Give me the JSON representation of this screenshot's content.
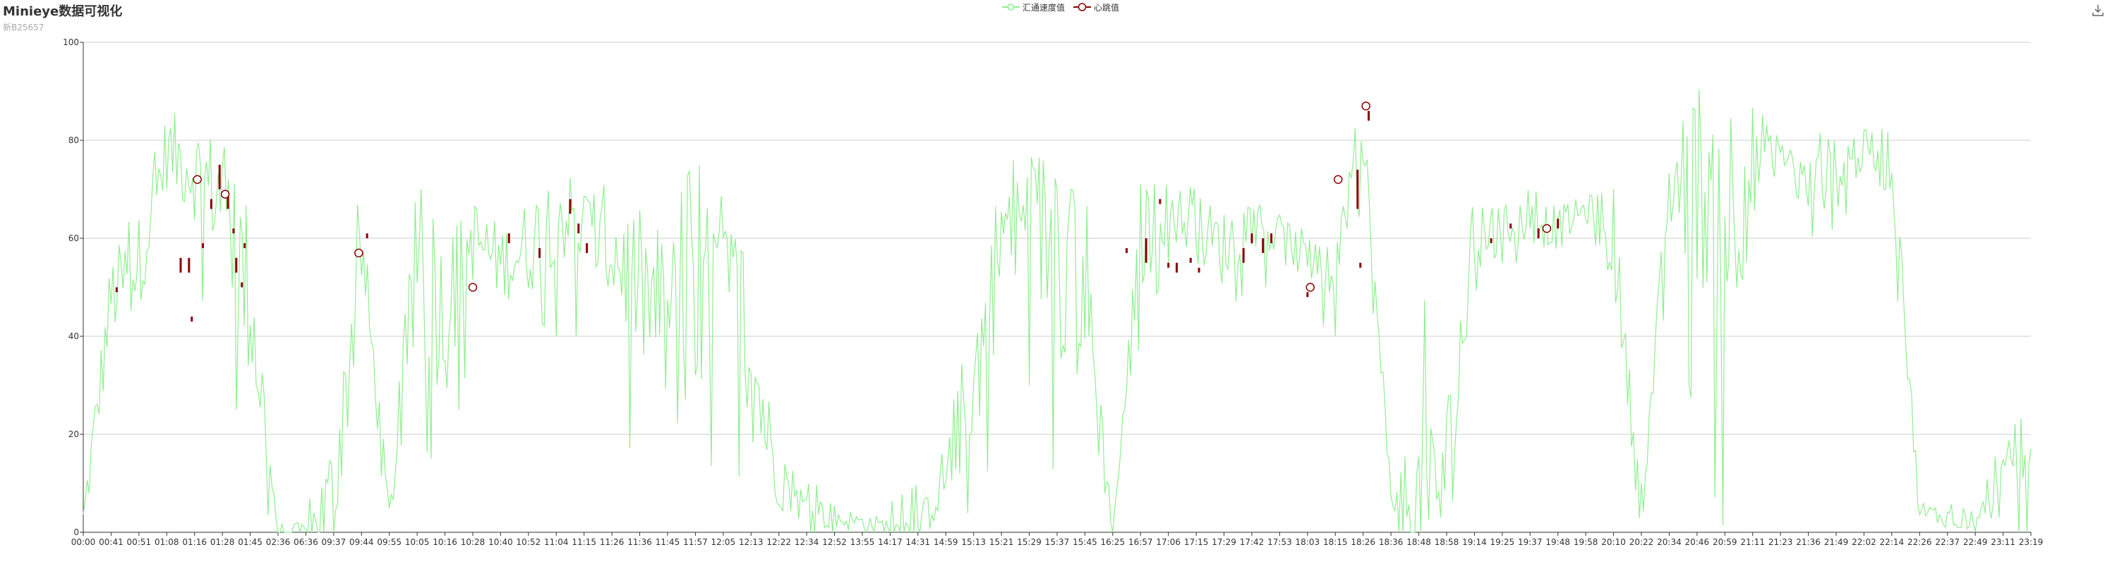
{
  "title": "Minieye数据可视化",
  "subtitle": "新B25657",
  "legend": {
    "series1": "汇通速度值",
    "series2": "心跳值"
  },
  "colors": {
    "speed": "#90ee90",
    "heartbeat": "#8b0000",
    "grid": "#cccccc",
    "axis": "#333333"
  },
  "icons": {
    "download": "download-icon"
  },
  "chart_data": {
    "type": "line",
    "title": "Minieye数据可视化",
    "subtitle": "新B25657",
    "ylim": [
      0,
      100
    ],
    "yticks": [
      0,
      20,
      40,
      60,
      80,
      100
    ],
    "grid": true,
    "legend_position": "top-center",
    "xticks": [
      "00:00",
      "00:41",
      "00:51",
      "01:08",
      "01:16",
      "01:28",
      "01:45",
      "02:36",
      "06:36",
      "09:37",
      "09:44",
      "09:55",
      "10:05",
      "10:16",
      "10:28",
      "10:40",
      "10:52",
      "11:04",
      "11:15",
      "11:26",
      "11:36",
      "11:45",
      "11:57",
      "12:05",
      "12:13",
      "12:22",
      "12:34",
      "12:52",
      "13:55",
      "14:17",
      "14:31",
      "14:59",
      "15:13",
      "15:21",
      "15:29",
      "15:37",
      "15:45",
      "16:25",
      "16:57",
      "17:06",
      "17:15",
      "17:29",
      "17:42",
      "17:53",
      "18:03",
      "18:15",
      "18:26",
      "18:36",
      "18:48",
      "18:58",
      "19:14",
      "19:25",
      "19:37",
      "19:48",
      "19:58",
      "20:10",
      "20:22",
      "20:34",
      "20:46",
      "20:59",
      "21:11",
      "21:23",
      "21:36",
      "21:49",
      "22:02",
      "22:14",
      "22:26",
      "22:37",
      "22:49",
      "23:11",
      "23:19"
    ],
    "series": [
      {
        "name": "汇通速度值",
        "kind": "line",
        "x": [
          0,
          1,
          2,
          3,
          4,
          5,
          6,
          7,
          8,
          9,
          10,
          11,
          12,
          13,
          14,
          15,
          16,
          17,
          18,
          19,
          20,
          21,
          22,
          23,
          24,
          25,
          26,
          27,
          28,
          29,
          30,
          31,
          32,
          33,
          34,
          35,
          36,
          37,
          38,
          39,
          40,
          41,
          42,
          43,
          44,
          45,
          46,
          47,
          48,
          49,
          50,
          51,
          52,
          53,
          54,
          55,
          56,
          57,
          58,
          59,
          60,
          61,
          62,
          63,
          64,
          65,
          66,
          67,
          68,
          69,
          70
        ],
        "y": [
          2,
          48,
          55,
          78,
          74,
          68,
          48,
          0,
          0,
          6,
          58,
          3,
          54,
          44,
          60,
          55,
          58,
          66,
          62,
          58,
          50,
          42,
          40,
          56,
          36,
          10,
          5,
          3,
          2,
          1,
          0,
          12,
          30,
          60,
          64,
          58,
          50,
          0,
          60,
          66,
          62,
          58,
          64,
          60,
          56,
          52,
          78,
          8,
          5,
          12,
          60,
          62,
          64,
          62,
          66,
          60,
          3,
          70,
          72,
          65,
          74,
          76,
          70,
          74,
          78,
          76,
          4,
          3,
          2,
          10,
          17
        ],
        "min": [
          0,
          30,
          40,
          62,
          50,
          40,
          10,
          0,
          0,
          0,
          40,
          0,
          20,
          10,
          40,
          40,
          45,
          40,
          40,
          30,
          10,
          5,
          5,
          20,
          5,
          0,
          0,
          0,
          0,
          0,
          0,
          0,
          5,
          20,
          30,
          10,
          0,
          0,
          40,
          55,
          50,
          45,
          50,
          50,
          45,
          40,
          60,
          0,
          0,
          0,
          30,
          55,
          55,
          55,
          60,
          40,
          0,
          55,
          20,
          0,
          40,
          65,
          60,
          62,
          70,
          60,
          0,
          0,
          0,
          0,
          0
        ],
        "max": [
          15,
          55,
          68,
          85,
          80,
          75,
          66,
          0,
          0,
          48,
          70,
          8,
          72,
          58,
          66,
          62,
          74,
          70,
          68,
          66,
          56,
          62,
          77,
          62,
          55,
          15,
          10,
          9,
          4,
          6,
          10,
          20,
          45,
          66,
          75,
          70,
          70,
          0,
          74,
          72,
          70,
          68,
          66,
          64,
          60,
          56,
          93,
          10,
          48,
          45,
          68,
          68,
          70,
          68,
          68,
          70,
          10,
          78,
          80,
          82,
          82,
          78,
          78,
          86,
          82,
          84,
          8,
          6,
          4,
          20,
          25
        ]
      },
      {
        "name": "心跳值",
        "kind": "scatter",
        "points": [
          {
            "x": 4.1,
            "y": 72
          },
          {
            "x": 5.1,
            "y": 69
          },
          {
            "x": 9.9,
            "y": 57
          },
          {
            "x": 14.0,
            "y": 50
          },
          {
            "x": 44.1,
            "y": 50
          },
          {
            "x": 45.1,
            "y": 72
          },
          {
            "x": 46.1,
            "y": 87
          },
          {
            "x": 52.6,
            "y": 62
          }
        ],
        "bars": [
          {
            "x": 1.2,
            "y1": 49,
            "y2": 50
          },
          {
            "x": 3.5,
            "y1": 53,
            "y2": 56
          },
          {
            "x": 3.8,
            "y1": 53,
            "y2": 56
          },
          {
            "x": 3.9,
            "y1": 43,
            "y2": 44
          },
          {
            "x": 4.3,
            "y1": 58,
            "y2": 59
          },
          {
            "x": 4.6,
            "y1": 66,
            "y2": 68
          },
          {
            "x": 4.9,
            "y1": 70,
            "y2": 75
          },
          {
            "x": 5.2,
            "y1": 66,
            "y2": 69
          },
          {
            "x": 5.4,
            "y1": 61,
            "y2": 62
          },
          {
            "x": 5.5,
            "y1": 53,
            "y2": 56
          },
          {
            "x": 5.7,
            "y1": 50,
            "y2": 51
          },
          {
            "x": 5.8,
            "y1": 58,
            "y2": 59
          },
          {
            "x": 10.2,
            "y1": 60,
            "y2": 61
          },
          {
            "x": 15.3,
            "y1": 59,
            "y2": 61
          },
          {
            "x": 16.4,
            "y1": 56,
            "y2": 58
          },
          {
            "x": 17.5,
            "y1": 65,
            "y2": 68
          },
          {
            "x": 17.8,
            "y1": 61,
            "y2": 63
          },
          {
            "x": 18.1,
            "y1": 57,
            "y2": 59
          },
          {
            "x": 37.5,
            "y1": 57,
            "y2": 58
          },
          {
            "x": 38.2,
            "y1": 55,
            "y2": 60
          },
          {
            "x": 38.7,
            "y1": 67,
            "y2": 68
          },
          {
            "x": 39.0,
            "y1": 54,
            "y2": 55
          },
          {
            "x": 39.3,
            "y1": 53,
            "y2": 55
          },
          {
            "x": 39.8,
            "y1": 55,
            "y2": 56
          },
          {
            "x": 40.1,
            "y1": 53,
            "y2": 54
          },
          {
            "x": 41.7,
            "y1": 55,
            "y2": 58
          },
          {
            "x": 42.0,
            "y1": 59,
            "y2": 61
          },
          {
            "x": 42.4,
            "y1": 57,
            "y2": 60
          },
          {
            "x": 42.7,
            "y1": 59,
            "y2": 61
          },
          {
            "x": 44.0,
            "y1": 48,
            "y2": 49
          },
          {
            "x": 45.8,
            "y1": 66,
            "y2": 74
          },
          {
            "x": 45.9,
            "y1": 54,
            "y2": 55
          },
          {
            "x": 46.2,
            "y1": 84,
            "y2": 86
          },
          {
            "x": 50.6,
            "y1": 59,
            "y2": 60
          },
          {
            "x": 51.3,
            "y1": 62,
            "y2": 63
          },
          {
            "x": 52.3,
            "y1": 60,
            "y2": 62
          },
          {
            "x": 53.0,
            "y1": 62,
            "y2": 64
          }
        ]
      }
    ]
  }
}
